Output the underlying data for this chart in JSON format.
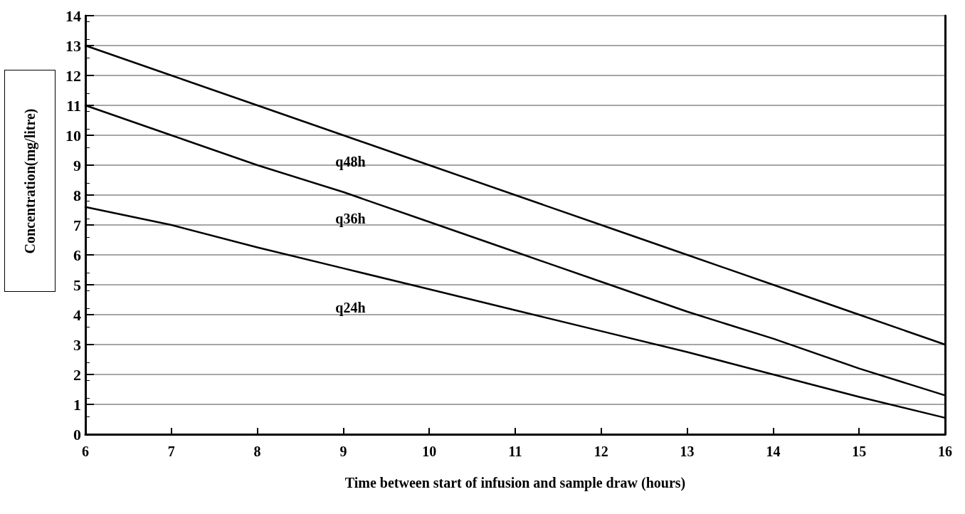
{
  "chart_data": {
    "type": "line",
    "xlabel": "Time between start of infusion and sample draw (hours)",
    "ylabel": "Concentration(mg/litre)",
    "x": [
      6,
      7,
      8,
      9,
      10,
      11,
      12,
      13,
      14,
      15,
      16
    ],
    "series": [
      {
        "name": "q48h",
        "color": "#000000",
        "values": [
          13,
          12,
          11,
          10,
          9,
          8,
          7,
          6,
          5,
          4,
          3
        ]
      },
      {
        "name": "q36h",
        "color": "#000000",
        "values": [
          11,
          10,
          9,
          8.1,
          7.1,
          6.1,
          5.1,
          4.1,
          3.2,
          2.2,
          1.3
        ]
      },
      {
        "name": "q24h",
        "color": "#000000",
        "values": [
          7.6,
          7,
          6.25,
          5.55,
          4.85,
          4.15,
          3.45,
          2.75,
          2,
          1.25,
          0.55
        ]
      }
    ],
    "xlim": [
      6,
      16
    ],
    "xticks": [
      6,
      7,
      8,
      9,
      10,
      11,
      12,
      13,
      14,
      15,
      16
    ],
    "ylim": [
      0,
      14
    ],
    "yticks": [
      0,
      1,
      2,
      3,
      4,
      5,
      6,
      7,
      8,
      9,
      10,
      11,
      12,
      13,
      14
    ],
    "grid": "y",
    "legend": false,
    "marker": "none",
    "line_style": "solid"
  }
}
